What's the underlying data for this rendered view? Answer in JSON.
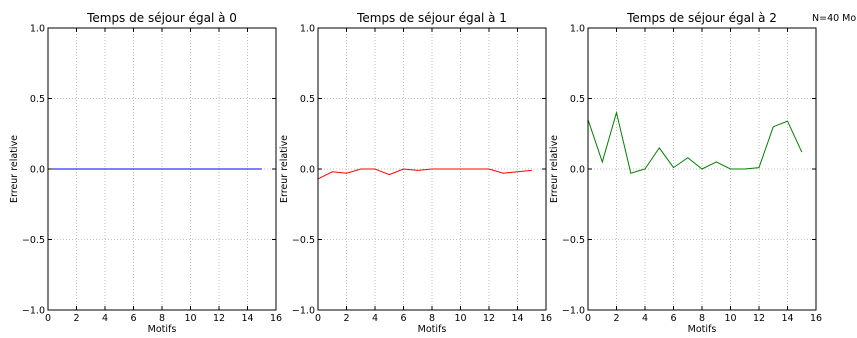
{
  "annotation": "N=40 Mo",
  "chart_data": [
    {
      "type": "line",
      "title": "Temps de séjour égal à 0",
      "xlabel": "Motifs",
      "ylabel": "Erreur relative",
      "xlim": [
        0,
        16
      ],
      "ylim": [
        -1.0,
        1.0
      ],
      "xticks": [
        "0",
        "2",
        "4",
        "6",
        "8",
        "10",
        "12",
        "14",
        "16"
      ],
      "yticks": [
        "−1.0",
        "−0.5",
        "0.0",
        "0.5",
        "1.0"
      ],
      "grid": true,
      "series": [
        {
          "color": "#0000ff",
          "x": [
            0,
            1,
            2,
            3,
            4,
            5,
            6,
            7,
            8,
            9,
            10,
            11,
            12,
            13,
            14,
            15
          ],
          "y": [
            0,
            0,
            0,
            0,
            0,
            0,
            0,
            0,
            0,
            0,
            0,
            0,
            0,
            0,
            0,
            0
          ]
        }
      ]
    },
    {
      "type": "line",
      "title": "Temps de séjour égal à 1",
      "xlabel": "Motifs",
      "ylabel": "Erreur relative",
      "xlim": [
        0,
        16
      ],
      "ylim": [
        -1.0,
        1.0
      ],
      "xticks": [
        "0",
        "2",
        "4",
        "6",
        "8",
        "10",
        "12",
        "14",
        "16"
      ],
      "yticks": [
        "−1.0",
        "−0.5",
        "0.0",
        "0.5",
        "1.0"
      ],
      "grid": true,
      "series": [
        {
          "color": "#ff0000",
          "x": [
            0,
            1,
            2,
            3,
            4,
            5,
            6,
            7,
            8,
            9,
            10,
            11,
            12,
            13,
            14,
            15
          ],
          "y": [
            -0.07,
            -0.02,
            -0.03,
            0.0,
            0.0,
            -0.04,
            0.0,
            -0.01,
            0.0,
            0.0,
            0.0,
            0.0,
            0.0,
            -0.03,
            -0.02,
            -0.01
          ]
        }
      ]
    },
    {
      "type": "line",
      "title": "Temps de séjour égal à 2",
      "xlabel": "Motifs",
      "ylabel": "Erreur relative",
      "xlim": [
        0,
        16
      ],
      "ylim": [
        -1.0,
        1.0
      ],
      "xticks": [
        "0",
        "2",
        "4",
        "6",
        "8",
        "10",
        "12",
        "14",
        "16"
      ],
      "yticks": [
        "−1.0",
        "−0.5",
        "0.0",
        "0.5",
        "1.0"
      ],
      "grid": true,
      "series": [
        {
          "color": "#008000",
          "x": [
            0,
            1,
            2,
            3,
            4,
            5,
            6,
            7,
            8,
            9,
            10,
            11,
            12,
            13,
            14,
            15
          ],
          "y": [
            0.35,
            0.05,
            0.4,
            -0.03,
            0.0,
            0.15,
            0.01,
            0.08,
            0.0,
            0.05,
            0.0,
            0.0,
            0.01,
            0.3,
            0.34,
            0.12
          ]
        }
      ]
    }
  ]
}
